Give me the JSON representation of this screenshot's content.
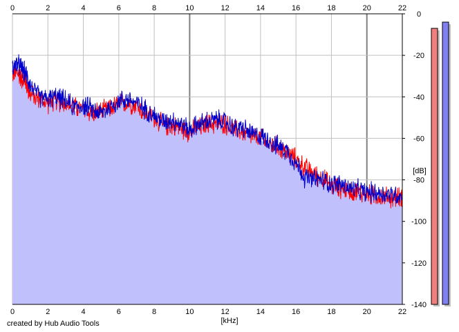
{
  "footer": {
    "credit": "created by Hub Audio Tools"
  },
  "colors": {
    "background": "#ffffff",
    "fill": "#c0c0fd",
    "grid": "#bfbfbf",
    "grid_major": "#808080",
    "series_red": "#ff0000",
    "series_blue": "#0000cc",
    "meter_red": "#f08080",
    "meter_blue": "#8080f0",
    "meter_shadow": "#c0c0c0"
  },
  "chart_data": {
    "type": "line",
    "xlabel": "[kHz]",
    "ylabel": "[dB]",
    "xlim": [
      0,
      22
    ],
    "ylim": [
      -140,
      0
    ],
    "x_ticks": [
      0,
      2,
      4,
      6,
      8,
      10,
      12,
      14,
      16,
      18,
      20,
      22
    ],
    "y_ticks": [
      0,
      -20,
      -40,
      -60,
      -80,
      -100,
      -120,
      -140
    ],
    "grid": true,
    "x": [
      0,
      0.25,
      0.5,
      0.75,
      1,
      1.5,
      2,
      2.5,
      3,
      3.5,
      4,
      4.5,
      5,
      5.5,
      6,
      6.5,
      7,
      7.5,
      8,
      8.5,
      9,
      9.5,
      10,
      10.5,
      11,
      11.5,
      12,
      12.5,
      13,
      13.5,
      14,
      14.5,
      15,
      15.5,
      16,
      16.5,
      17,
      17.5,
      18,
      18.5,
      19,
      19.5,
      20,
      20.5,
      21,
      21.5,
      22
    ],
    "series": [
      {
        "color": "#ff0000",
        "values": [
          -29,
          -28,
          -31,
          -33,
          -39,
          -41,
          -43,
          -42,
          -43,
          -45,
          -46,
          -48,
          -47,
          -46,
          -43,
          -43,
          -44,
          -48,
          -50,
          -54,
          -54,
          -55,
          -57,
          -55,
          -53,
          -53,
          -53,
          -56,
          -57,
          -59,
          -60,
          -63,
          -64,
          -67,
          -70,
          -74,
          -77,
          -79,
          -83,
          -84,
          -85,
          -86,
          -87,
          -88,
          -88,
          -89,
          -88
        ]
      },
      {
        "color": "#0000cc",
        "values": [
          -26,
          -24,
          -26,
          -29,
          -34,
          -40,
          -41,
          -40,
          -42,
          -45,
          -44,
          -46,
          -48,
          -45,
          -42,
          -41,
          -43,
          -46,
          -49,
          -52,
          -51,
          -53,
          -56,
          -53,
          -52,
          -51,
          -52,
          -55,
          -55,
          -58,
          -59,
          -61,
          -64,
          -66,
          -72,
          -79,
          -80,
          -80,
          -82,
          -82,
          -84,
          -85,
          -86,
          -86,
          -87,
          -87,
          -88
        ]
      }
    ],
    "level_meters": [
      {
        "color": "#f08080",
        "level_db": -7
      },
      {
        "color": "#8080f0",
        "level_db": -4
      }
    ]
  }
}
